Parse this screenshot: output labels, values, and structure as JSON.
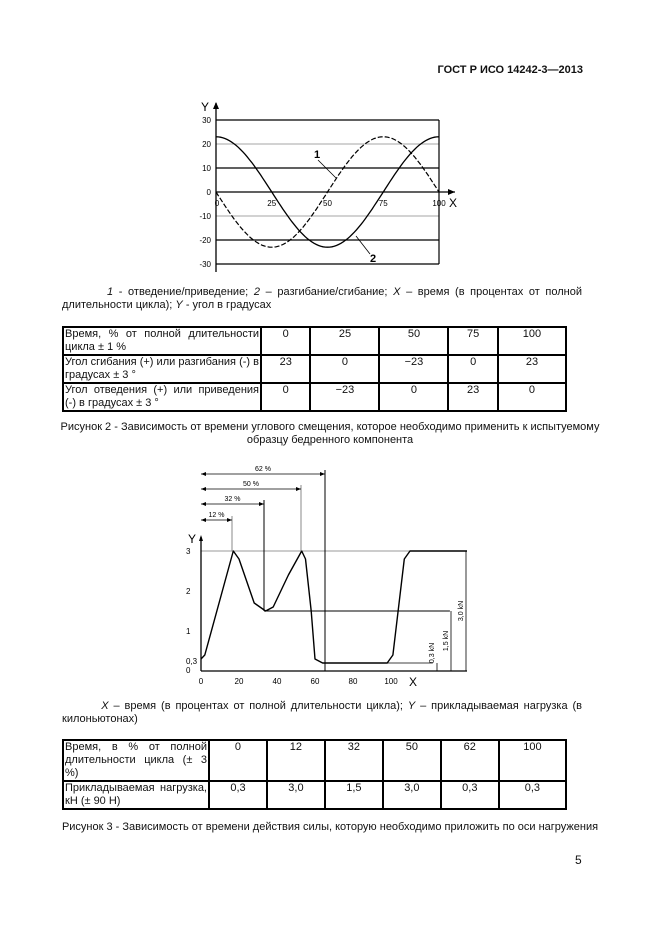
{
  "header": {
    "standard": "ГОСТ Р ИСО 14242-3—2013"
  },
  "figure2": {
    "legend": {
      "k1": "1",
      "t1": " - отведение/приведение; ",
      "k2": "2",
      "t2": " – разгибание/сгибание; ",
      "kx": "X",
      "tx": " – время (в процентах от полной длительности цикла); ",
      "ky": "Y",
      "ty": " - угол в градусах"
    },
    "table": {
      "rows": [
        {
          "label": "Время, % от полной длительности цикла ± 1 %",
          "values": [
            "0",
            "25",
            "50",
            "75",
            "100"
          ]
        },
        {
          "label": "Угол сгибания (+) или разгибания (-) в градусах ± 3 °",
          "values": [
            "23",
            "0",
            "−23",
            "0",
            "23"
          ]
        },
        {
          "label": "Угол отведения (+) или приведения (-) в градусах ± 3 °",
          "values": [
            "0",
            "−23",
            "0",
            "23",
            "0"
          ]
        }
      ]
    },
    "caption": "Рисунок 2 - Зависимость от времени углового смещения, которое необходимо применить к испытуемому образцу бедренного компонента"
  },
  "figure3": {
    "legend": {
      "kx": "X",
      "tx": " – время (в процентах от полной длительности цикла); ",
      "ky": "Y",
      "ty": " – прикладываемая нагрузка (в килоньютонах)"
    },
    "table": {
      "rows": [
        {
          "label": "Время, в % от полной длительности цикла (± 3 %)",
          "values": [
            "0",
            "12",
            "32",
            "50",
            "62",
            "100"
          ]
        },
        {
          "label": "Прикладываемая нагрузка, кН (± 90 Н)",
          "values": [
            "0,3",
            "3,0",
            "1,5",
            "3,0",
            "0,3",
            "0,3"
          ]
        }
      ]
    },
    "caption": "Рисунок 3 - Зависимость от времени действия силы, которую необходимо приложить по оси нагружения"
  },
  "page_number": "5",
  "chart_data": [
    {
      "type": "line",
      "xlabel": "X",
      "ylabel": "Y",
      "xlim": [
        0,
        100
      ],
      "ylim": [
        -30,
        30
      ],
      "xticks": [
        "0",
        "25",
        "50",
        "75",
        "100"
      ],
      "yticks": [
        "30",
        "20",
        "10",
        "0",
        "-10",
        "-20",
        "-30"
      ],
      "grid": true,
      "series": [
        {
          "name": "1",
          "style": "dashed",
          "x": [
            0,
            25,
            50,
            75,
            100
          ],
          "y": [
            0,
            -23,
            0,
            23,
            0
          ]
        },
        {
          "name": "2",
          "style": "solid",
          "x": [
            0,
            25,
            50,
            75,
            100
          ],
          "y": [
            23,
            0,
            -23,
            0,
            23
          ]
        }
      ]
    },
    {
      "type": "line",
      "xlabel": "X",
      "ylabel": "Y",
      "xlim": [
        0,
        140
      ],
      "ylim": [
        0,
        3
      ],
      "xticks": [
        "0",
        "20",
        "40",
        "60",
        "80",
        "100"
      ],
      "yticks": [
        "0",
        "0,3",
        "1",
        "2",
        "3"
      ],
      "dimension_labels": [
        "12 %",
        "32 %",
        "50 %",
        "62 %"
      ],
      "level_labels": [
        "0,3 kN",
        "1,5 kN",
        "3,0 kN"
      ],
      "series": [
        {
          "x": [
            0,
            2,
            17,
            20,
            28,
            34,
            38,
            46,
            53,
            55,
            58,
            60,
            64,
            98,
            101,
            107,
            110,
            140
          ],
          "y": [
            0.3,
            0.4,
            3.0,
            2.8,
            1.7,
            1.5,
            1.6,
            2.4,
            3.0,
            2.8,
            1.5,
            0.3,
            0.2,
            0.2,
            0.4,
            2.8,
            3.0,
            3.0
          ]
        }
      ]
    }
  ]
}
